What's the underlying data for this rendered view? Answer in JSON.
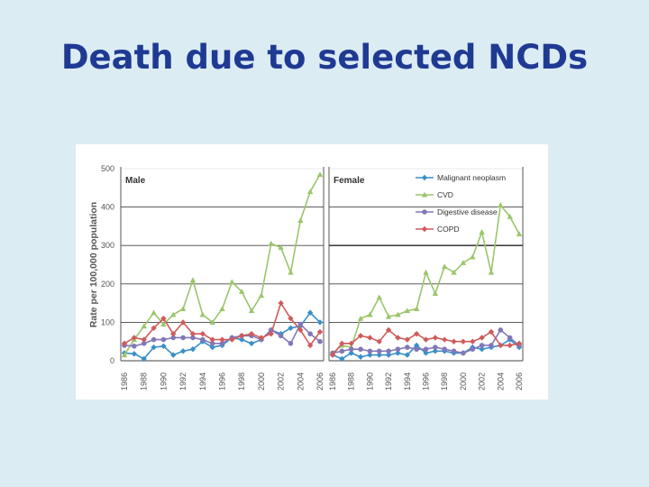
{
  "slide": {
    "title": "Death due to selected NCDs"
  },
  "chart_data": {
    "type": "line",
    "ylabel": "Rate per 100,000 population",
    "ylim": [
      0,
      500
    ],
    "yticks": [
      0,
      100,
      200,
      300,
      400,
      500
    ],
    "xticks": [
      "1986",
      "1988",
      "1990",
      "1992",
      "1994",
      "1996",
      "1998",
      "2000",
      "2002",
      "2004",
      "2006"
    ],
    "colors": {
      "Malignant neoplasm": "#3a8fc9",
      "CVD": "#9bc56a",
      "Digestive disease": "#8278b8",
      "COPD": "#cf5b5b"
    },
    "markers": {
      "Malignant neoplasm": "diamond",
      "CVD": "triangle",
      "Digestive disease": "circle",
      "COPD": "diamond"
    },
    "panels": [
      {
        "title": "Male",
        "series": [
          {
            "name": "Malignant neoplasm",
            "x": [
              1986,
              1987,
              1988,
              1989,
              1990,
              1991,
              1992,
              1993,
              1994,
              1995,
              1996,
              1997,
              1998,
              1999,
              2000,
              2001,
              2002,
              2003,
              2004,
              2005,
              2006
            ],
            "values": [
              20,
              18,
              5,
              35,
              38,
              15,
              25,
              30,
              50,
              35,
              40,
              60,
              55,
              45,
              55,
              80,
              70,
              85,
              90,
              125,
              100
            ]
          },
          {
            "name": "CVD",
            "x": [
              1986,
              1987,
              1988,
              1989,
              1990,
              1991,
              1992,
              1993,
              1994,
              1995,
              1996,
              1997,
              1998,
              1999,
              2000,
              2001,
              2002,
              2003,
              2004,
              2005,
              2006
            ],
            "values": [
              15,
              55,
              90,
              125,
              95,
              120,
              135,
              210,
              120,
              100,
              135,
              205,
              180,
              130,
              170,
              305,
              295,
              230,
              365,
              440,
              485
            ]
          },
          {
            "name": "Digestive disease",
            "x": [
              1986,
              1987,
              1988,
              1989,
              1990,
              1991,
              1992,
              1993,
              1994,
              1995,
              1996,
              1997,
              1998,
              1999,
              2000,
              2001,
              2002,
              2003,
              2004,
              2005,
              2006
            ],
            "values": [
              40,
              38,
              45,
              55,
              55,
              60,
              60,
              60,
              55,
              45,
              45,
              60,
              65,
              65,
              55,
              80,
              65,
              45,
              95,
              70,
              50
            ]
          },
          {
            "name": "COPD",
            "x": [
              1986,
              1987,
              1988,
              1989,
              1990,
              1991,
              1992,
              1993,
              1994,
              1995,
              1996,
              1997,
              1998,
              1999,
              2000,
              2001,
              2002,
              2003,
              2004,
              2005,
              2006
            ],
            "values": [
              45,
              60,
              55,
              85,
              110,
              70,
              100,
              70,
              70,
              55,
              55,
              55,
              65,
              70,
              60,
              70,
              150,
              110,
              80,
              40,
              75
            ]
          }
        ]
      },
      {
        "title": "Female",
        "series": [
          {
            "name": "Malignant neoplasm",
            "x": [
              1986,
              1987,
              1988,
              1989,
              1990,
              1991,
              1992,
              1993,
              1994,
              1995,
              1996,
              1997,
              1998,
              1999,
              2000,
              2001,
              2002,
              2003,
              2004,
              2005,
              2006
            ],
            "values": [
              15,
              5,
              20,
              10,
              15,
              15,
              15,
              20,
              15,
              40,
              20,
              25,
              25,
              20,
              20,
              35,
              30,
              35,
              40,
              55,
              35
            ]
          },
          {
            "name": "CVD",
            "x": [
              1986,
              1987,
              1988,
              1989,
              1990,
              1991,
              1992,
              1993,
              1994,
              1995,
              1996,
              1997,
              1998,
              1999,
              2000,
              2001,
              2002,
              2003,
              2004,
              2005,
              2006
            ],
            "values": [
              20,
              40,
              35,
              110,
              120,
              165,
              115,
              120,
              130,
              135,
              230,
              175,
              245,
              230,
              255,
              270,
              335,
              230,
              405,
              375,
              330
            ]
          },
          {
            "name": "Digestive disease",
            "x": [
              1986,
              1987,
              1988,
              1989,
              1990,
              1991,
              1992,
              1993,
              1994,
              1995,
              1996,
              1997,
              1998,
              1999,
              2000,
              2001,
              2002,
              2003,
              2004,
              2005,
              2006
            ],
            "values": [
              20,
              25,
              30,
              30,
              25,
              25,
              25,
              30,
              35,
              30,
              30,
              35,
              30,
              25,
              20,
              30,
              40,
              40,
              80,
              60,
              40
            ]
          },
          {
            "name": "COPD",
            "x": [
              1986,
              1987,
              1988,
              1989,
              1990,
              1991,
              1992,
              1993,
              1994,
              1995,
              1996,
              1997,
              1998,
              1999,
              2000,
              2001,
              2002,
              2003,
              2004,
              2005,
              2006
            ],
            "values": [
              15,
              45,
              45,
              65,
              60,
              50,
              80,
              60,
              55,
              70,
              55,
              60,
              55,
              50,
              50,
              50,
              60,
              75,
              40,
              40,
              45
            ]
          }
        ]
      }
    ]
  }
}
